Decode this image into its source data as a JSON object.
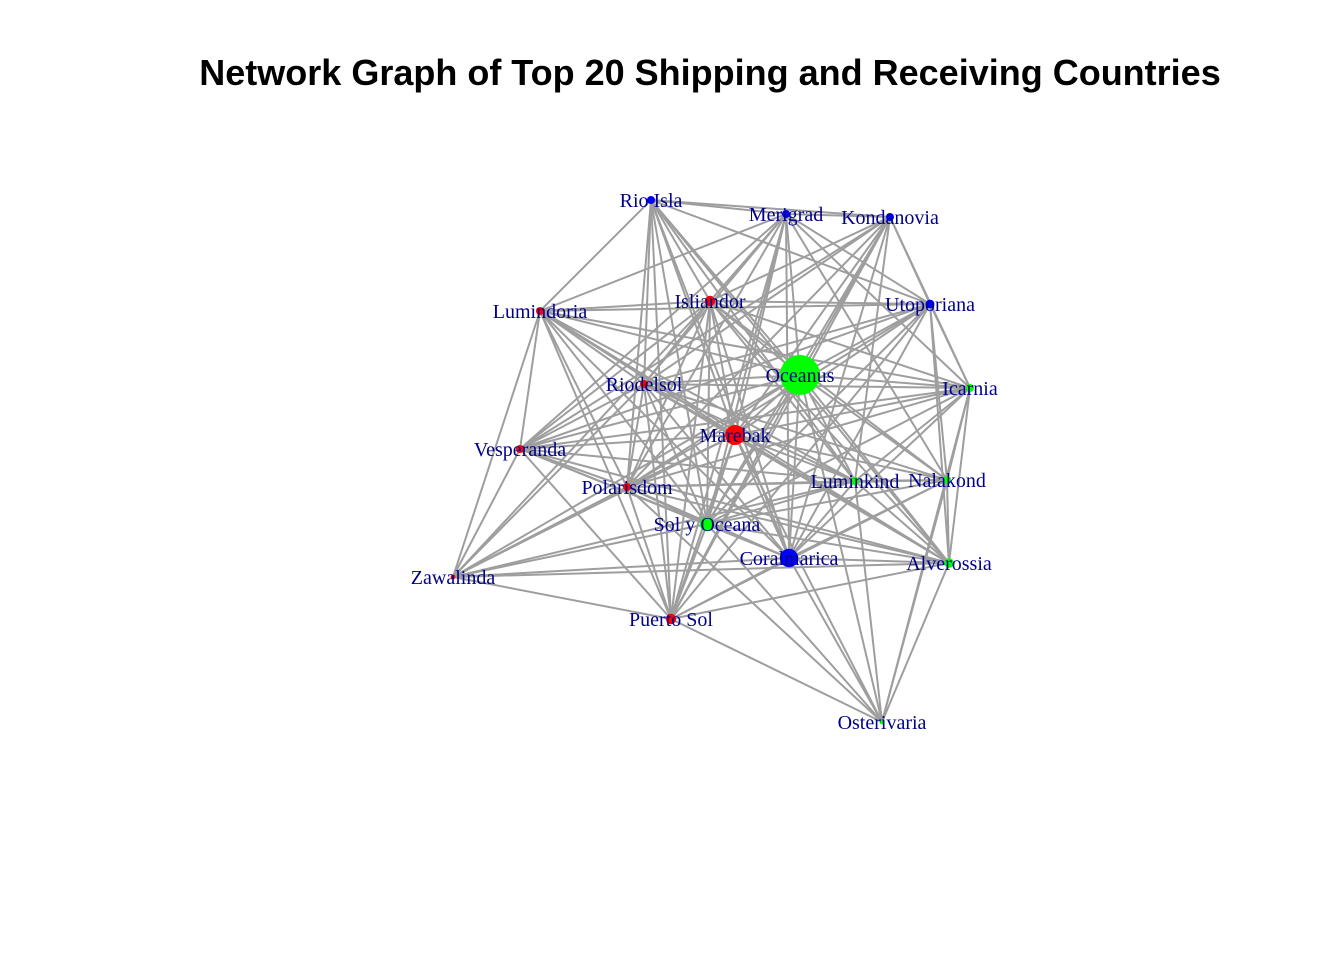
{
  "title": "Network Graph of Top 20 Shipping and Receiving Countries",
  "colors": {
    "edge": "#9e9e9e",
    "label": "#00008b",
    "red": "#ff0000",
    "blue": "#0000ff",
    "green": "#00ff00"
  },
  "nodes": [
    {
      "id": "Rio Isla",
      "color": "blue",
      "size": 1
    },
    {
      "id": "Merigrad",
      "color": "blue",
      "size": 1
    },
    {
      "id": "Kondanovia",
      "color": "blue",
      "size": 1
    },
    {
      "id": "Lumindoria",
      "color": "red",
      "size": 1
    },
    {
      "id": "Isliandor",
      "color": "red",
      "size": 1.3
    },
    {
      "id": "Utoporiana",
      "color": "blue",
      "size": 1.1
    },
    {
      "id": "Oceanus",
      "color": "green",
      "size": 5
    },
    {
      "id": "Riodelsol",
      "color": "red",
      "size": 1
    },
    {
      "id": "Icarnia",
      "color": "green",
      "size": 1
    },
    {
      "id": "Marebak",
      "color": "red",
      "size": 2.5
    },
    {
      "id": "Vesperanda",
      "color": "red",
      "size": 1
    },
    {
      "id": "Luminkind",
      "color": "green",
      "size": 1
    },
    {
      "id": "Nalakond",
      "color": "green",
      "size": 1
    },
    {
      "id": "Polarisdom",
      "color": "red",
      "size": 1
    },
    {
      "id": "Sol y Oceana",
      "color": "green",
      "size": 1.8
    },
    {
      "id": "Coralmarica",
      "color": "blue",
      "size": 2.3
    },
    {
      "id": "Alverossia",
      "color": "green",
      "size": 1.2
    },
    {
      "id": "Zawalinda",
      "color": "red",
      "size": 0.6
    },
    {
      "id": "Puerto Sol",
      "color": "red",
      "size": 1.3
    },
    {
      "id": "Osterivaria",
      "color": "green",
      "size": 0.6
    }
  ],
  "edges": [
    [
      "Rio Isla",
      "Merigrad"
    ],
    [
      "Rio Isla",
      "Kondanovia"
    ],
    [
      "Rio Isla",
      "Lumindoria"
    ],
    [
      "Rio Isla",
      "Isliandor"
    ],
    [
      "Rio Isla",
      "Utoporiana"
    ],
    [
      "Rio Isla",
      "Oceanus"
    ],
    [
      "Rio Isla",
      "Riodelsol"
    ],
    [
      "Rio Isla",
      "Marebak"
    ],
    [
      "Rio Isla",
      "Polarisdom"
    ],
    [
      "Rio Isla",
      "Sol y Oceana"
    ],
    [
      "Rio Isla",
      "Coralmarica"
    ],
    [
      "Rio Isla",
      "Puerto Sol"
    ],
    [
      "Rio Isla",
      "Luminkind"
    ],
    [
      "Rio Isla",
      "Alverossia"
    ],
    [
      "Merigrad",
      "Kondanovia"
    ],
    [
      "Merigrad",
      "Isliandor"
    ],
    [
      "Merigrad",
      "Utoporiana"
    ],
    [
      "Merigrad",
      "Oceanus"
    ],
    [
      "Merigrad",
      "Riodelsol"
    ],
    [
      "Merigrad",
      "Marebak"
    ],
    [
      "Merigrad",
      "Vesperanda"
    ],
    [
      "Merigrad",
      "Polarisdom"
    ],
    [
      "Merigrad",
      "Sol y Oceana"
    ],
    [
      "Merigrad",
      "Coralmarica"
    ],
    [
      "Merigrad",
      "Icarnia"
    ],
    [
      "Merigrad",
      "Nalakond"
    ],
    [
      "Merigrad",
      "Puerto Sol"
    ],
    [
      "Merigrad",
      "Lumindoria"
    ],
    [
      "Kondanovia",
      "Utoporiana"
    ],
    [
      "Kondanovia",
      "Oceanus"
    ],
    [
      "Kondanovia",
      "Isliandor"
    ],
    [
      "Kondanovia",
      "Marebak"
    ],
    [
      "Kondanovia",
      "Riodelsol"
    ],
    [
      "Kondanovia",
      "Polarisdom"
    ],
    [
      "Kondanovia",
      "Sol y Oceana"
    ],
    [
      "Kondanovia",
      "Coralmarica"
    ],
    [
      "Kondanovia",
      "Icarnia"
    ],
    [
      "Kondanovia",
      "Luminkind"
    ],
    [
      "Kondanovia",
      "Vesperanda"
    ],
    [
      "Kondanovia",
      "Puerto Sol"
    ],
    [
      "Lumindoria",
      "Isliandor"
    ],
    [
      "Lumindoria",
      "Utoporiana"
    ],
    [
      "Lumindoria",
      "Oceanus"
    ],
    [
      "Lumindoria",
      "Riodelsol"
    ],
    [
      "Lumindoria",
      "Marebak"
    ],
    [
      "Lumindoria",
      "Vesperanda"
    ],
    [
      "Lumindoria",
      "Zawalinda"
    ],
    [
      "Lumindoria",
      "Polarisdom"
    ],
    [
      "Lumindoria",
      "Sol y Oceana"
    ],
    [
      "Lumindoria",
      "Coralmarica"
    ],
    [
      "Lumindoria",
      "Puerto Sol"
    ],
    [
      "Lumindoria",
      "Luminkind"
    ],
    [
      "Lumindoria",
      "Alverossia"
    ],
    [
      "Lumindoria",
      "Icarnia"
    ],
    [
      "Isliandor",
      "Utoporiana"
    ],
    [
      "Isliandor",
      "Oceanus"
    ],
    [
      "Isliandor",
      "Riodelsol"
    ],
    [
      "Isliandor",
      "Marebak"
    ],
    [
      "Isliandor",
      "Vesperanda"
    ],
    [
      "Isliandor",
      "Polarisdom"
    ],
    [
      "Isliandor",
      "Sol y Oceana"
    ],
    [
      "Isliandor",
      "Coralmarica"
    ],
    [
      "Isliandor",
      "Icarnia"
    ],
    [
      "Isliandor",
      "Luminkind"
    ],
    [
      "Isliandor",
      "Nalakond"
    ],
    [
      "Isliandor",
      "Alverossia"
    ],
    [
      "Isliandor",
      "Zawalinda"
    ],
    [
      "Isliandor",
      "Puerto Sol"
    ],
    [
      "Utoporiana",
      "Oceanus"
    ],
    [
      "Utoporiana",
      "Icarnia"
    ],
    [
      "Utoporiana",
      "Marebak"
    ],
    [
      "Utoporiana",
      "Riodelsol"
    ],
    [
      "Utoporiana",
      "Polarisdom"
    ],
    [
      "Utoporiana",
      "Sol y Oceana"
    ],
    [
      "Utoporiana",
      "Coralmarica"
    ],
    [
      "Utoporiana",
      "Alverossia"
    ],
    [
      "Utoporiana",
      "Nalakond"
    ],
    [
      "Utoporiana",
      "Vesperanda"
    ],
    [
      "Utoporiana",
      "Puerto Sol"
    ],
    [
      "Oceanus",
      "Riodelsol"
    ],
    [
      "Oceanus",
      "Icarnia"
    ],
    [
      "Oceanus",
      "Marebak"
    ],
    [
      "Oceanus",
      "Vesperanda"
    ],
    [
      "Oceanus",
      "Luminkind"
    ],
    [
      "Oceanus",
      "Nalakond"
    ],
    [
      "Oceanus",
      "Polarisdom"
    ],
    [
      "Oceanus",
      "Sol y Oceana"
    ],
    [
      "Oceanus",
      "Coralmarica"
    ],
    [
      "Oceanus",
      "Alverossia"
    ],
    [
      "Oceanus",
      "Zawalinda"
    ],
    [
      "Oceanus",
      "Puerto Sol"
    ],
    [
      "Oceanus",
      "Osterivaria"
    ],
    [
      "Riodelsol",
      "Icarnia"
    ],
    [
      "Riodelsol",
      "Marebak"
    ],
    [
      "Riodelsol",
      "Vesperanda"
    ],
    [
      "Riodelsol",
      "Luminkind"
    ],
    [
      "Riodelsol",
      "Polarisdom"
    ],
    [
      "Riodelsol",
      "Sol y Oceana"
    ],
    [
      "Riodelsol",
      "Coralmarica"
    ],
    [
      "Riodelsol",
      "Alverossia"
    ],
    [
      "Riodelsol",
      "Zawalinda"
    ],
    [
      "Riodelsol",
      "Puerto Sol"
    ],
    [
      "Riodelsol",
      "Nalakond"
    ],
    [
      "Icarnia",
      "Marebak"
    ],
    [
      "Icarnia",
      "Luminkind"
    ],
    [
      "Icarnia",
      "Nalakond"
    ],
    [
      "Icarnia",
      "Coralmarica"
    ],
    [
      "Icarnia",
      "Alverossia"
    ],
    [
      "Icarnia",
      "Sol y Oceana"
    ],
    [
      "Icarnia",
      "Polarisdom"
    ],
    [
      "Icarnia",
      "Vesperanda"
    ],
    [
      "Icarnia",
      "Osterivaria"
    ],
    [
      "Marebak",
      "Vesperanda"
    ],
    [
      "Marebak",
      "Luminkind"
    ],
    [
      "Marebak",
      "Nalakond"
    ],
    [
      "Marebak",
      "Polarisdom"
    ],
    [
      "Marebak",
      "Sol y Oceana"
    ],
    [
      "Marebak",
      "Coralmarica"
    ],
    [
      "Marebak",
      "Alverossia"
    ],
    [
      "Marebak",
      "Zawalinda"
    ],
    [
      "Marebak",
      "Puerto Sol"
    ],
    [
      "Marebak",
      "Osterivaria"
    ],
    [
      "Vesperanda",
      "Polarisdom"
    ],
    [
      "Vesperanda",
      "Sol y Oceana"
    ],
    [
      "Vesperanda",
      "Coralmarica"
    ],
    [
      "Vesperanda",
      "Zawalinda"
    ],
    [
      "Vesperanda",
      "Puerto Sol"
    ],
    [
      "Vesperanda",
      "Luminkind"
    ],
    [
      "Vesperanda",
      "Alverossia"
    ],
    [
      "Luminkind",
      "Nalakond"
    ],
    [
      "Luminkind",
      "Sol y Oceana"
    ],
    [
      "Luminkind",
      "Coralmarica"
    ],
    [
      "Luminkind",
      "Alverossia"
    ],
    [
      "Luminkind",
      "Polarisdom"
    ],
    [
      "Luminkind",
      "Zawalinda"
    ],
    [
      "Luminkind",
      "Osterivaria"
    ],
    [
      "Nalakond",
      "Coralmarica"
    ],
    [
      "Nalakond",
      "Alverossia"
    ],
    [
      "Nalakond",
      "Sol y Oceana"
    ],
    [
      "Nalakond",
      "Polarisdom"
    ],
    [
      "Nalakond",
      "Puerto Sol"
    ],
    [
      "Nalakond",
      "Osterivaria"
    ],
    [
      "Polarisdom",
      "Sol y Oceana"
    ],
    [
      "Polarisdom",
      "Coralmarica"
    ],
    [
      "Polarisdom",
      "Zawalinda"
    ],
    [
      "Polarisdom",
      "Puerto Sol"
    ],
    [
      "Polarisdom",
      "Alverossia"
    ],
    [
      "Polarisdom",
      "Osterivaria"
    ],
    [
      "Sol y Oceana",
      "Coralmarica"
    ],
    [
      "Sol y Oceana",
      "Alverossia"
    ],
    [
      "Sol y Oceana",
      "Zawalinda"
    ],
    [
      "Sol y Oceana",
      "Puerto Sol"
    ],
    [
      "Sol y Oceana",
      "Osterivaria"
    ],
    [
      "Coralmarica",
      "Alverossia"
    ],
    [
      "Coralmarica",
      "Zawalinda"
    ],
    [
      "Coralmarica",
      "Puerto Sol"
    ],
    [
      "Coralmarica",
      "Osterivaria"
    ],
    [
      "Alverossia",
      "Zawalinda"
    ],
    [
      "Alverossia",
      "Puerto Sol"
    ],
    [
      "Alverossia",
      "Osterivaria"
    ],
    [
      "Zawalinda",
      "Puerto Sol"
    ],
    [
      "Puerto Sol",
      "Osterivaria"
    ]
  ]
}
